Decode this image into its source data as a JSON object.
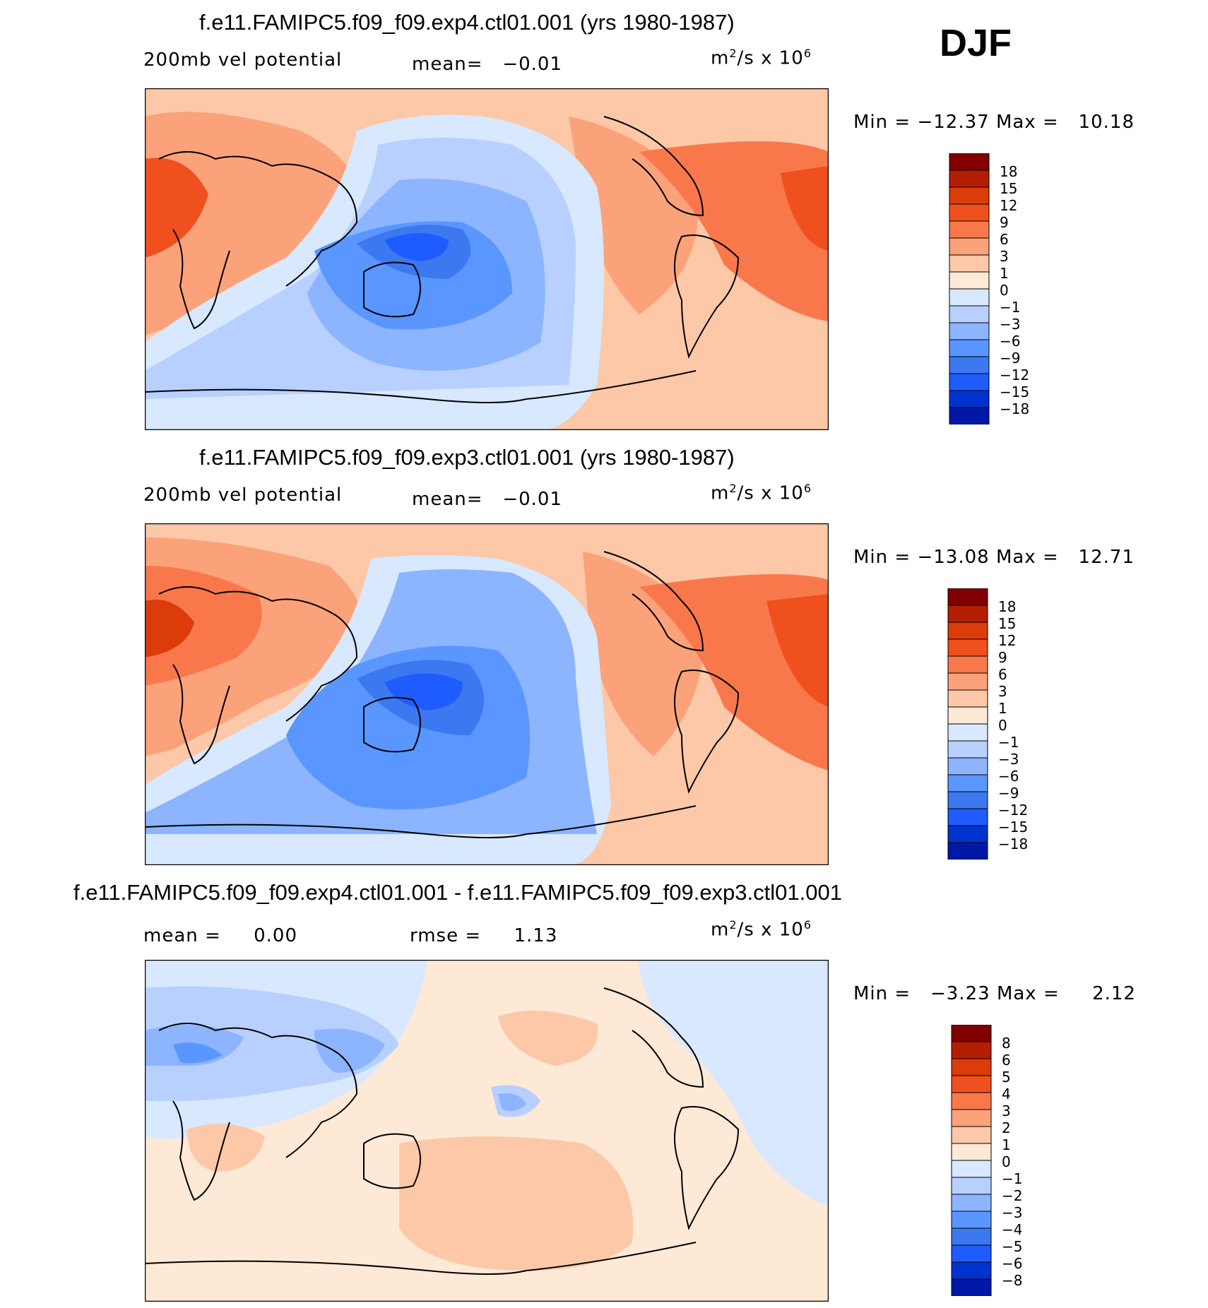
{
  "season": "DJF",
  "colors": {
    "abs_fill": [
      "#00008c",
      "#0018a8",
      "#0032d0",
      "#1e5cff",
      "#3c78f0",
      "#5a96ff",
      "#8cb4ff",
      "#b8d0ff",
      "#d8e8ff",
      "#fde9d6",
      "#fcc8a8",
      "#fba27a",
      "#f8784c",
      "#f0501e",
      "#dc3c0a",
      "#b41e00",
      "#820000"
    ],
    "diff_fill": [
      "#00008c",
      "#0018a8",
      "#0032d0",
      "#1e5cff",
      "#3c78f0",
      "#5a96ff",
      "#8cb4ff",
      "#b8d0ff",
      "#d8e8ff",
      "#fde9d6",
      "#fcc8a8",
      "#fba27a",
      "#f8784c",
      "#f0501e",
      "#dc3c0a",
      "#b41e00",
      "#820000"
    ]
  },
  "chart_data": [
    {
      "type": "heatmap",
      "title": "f.e11.FAMIPC5.f09_f09.exp4.ctl01.001 (yrs 1980-1987)",
      "field_label": "200mb vel potential",
      "mean_label": "mean=",
      "mean_value": "−0.01",
      "units": "m",
      "units_sup": "2",
      "units_rest": "/s x 10",
      "units_exp": "6",
      "min_label": "Min =",
      "min_value": "−12.37",
      "max_label": "Max =",
      "max_value": "10.18",
      "levels": [
        "18",
        "15",
        "12",
        "9",
        "6",
        "3",
        "1",
        "0",
        "−1",
        "−3",
        "−6",
        "−9",
        "−12",
        "−15",
        "−18"
      ],
      "min": -12.37,
      "max": 10.18
    },
    {
      "type": "heatmap",
      "title": "f.e11.FAMIPC5.f09_f09.exp3.ctl01.001 (yrs 1980-1987)",
      "field_label": "200mb vel potential",
      "mean_label": "mean=",
      "mean_value": "−0.01",
      "units": "m",
      "units_sup": "2",
      "units_rest": "/s x 10",
      "units_exp": "6",
      "min_label": "Min =",
      "min_value": "−13.08",
      "max_label": "Max =",
      "max_value": "12.71",
      "levels": [
        "18",
        "15",
        "12",
        "9",
        "6",
        "3",
        "1",
        "0",
        "−1",
        "−3",
        "−6",
        "−9",
        "−12",
        "−15",
        "−18"
      ],
      "min": -13.08,
      "max": 12.71
    },
    {
      "type": "heatmap",
      "title": "f.e11.FAMIPC5.f09_f09.exp4.ctl01.001 - f.e11.FAMIPC5.f09_f09.exp3.ctl01.001",
      "mean_label": "mean =",
      "mean_value": "0.00",
      "rmse_label": "rmse =",
      "rmse_value": "1.13",
      "units": "m",
      "units_sup": "2",
      "units_rest": "/s x 10",
      "units_exp": "6",
      "min_label": "Min =",
      "min_value": "−3.23",
      "max_label": "Max =",
      "max_value": "2.12",
      "levels": [
        "8",
        "6",
        "5",
        "4",
        "3",
        "2",
        "1",
        "0",
        "−1",
        "−2",
        "−3",
        "−4",
        "−5",
        "−6",
        "−8"
      ],
      "min": -3.23,
      "max": 2.12
    }
  ]
}
